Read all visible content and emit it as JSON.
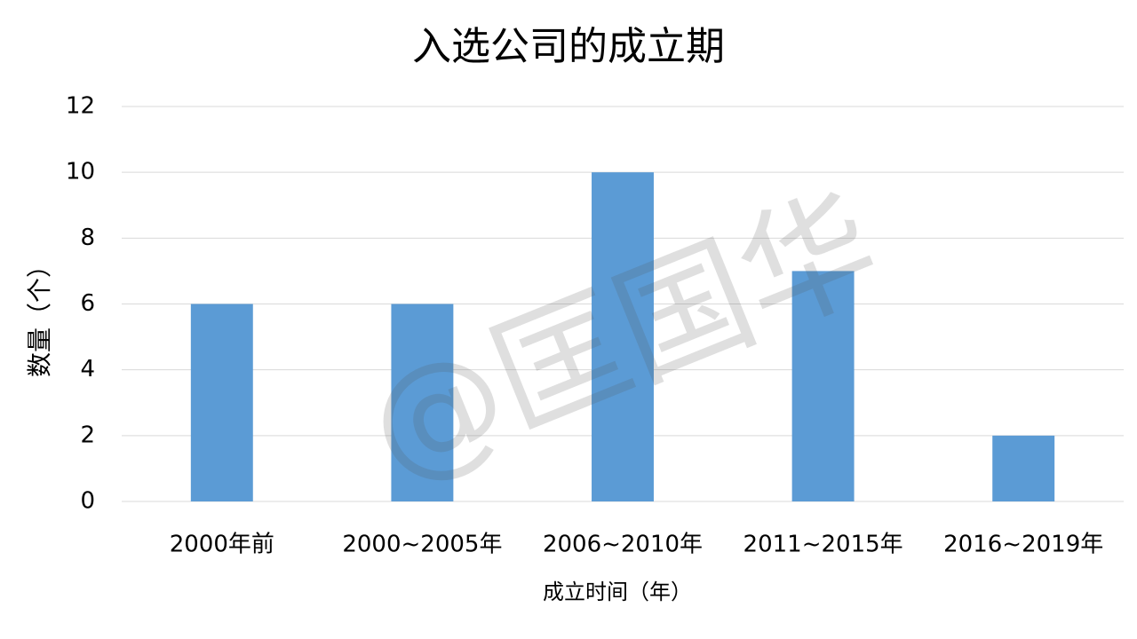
{
  "chart_data": {
    "type": "bar",
    "title": "入选公司的成立期",
    "x_label": "成立时间（年）",
    "y_label": "数量（个）",
    "categories": [
      "2000年前",
      "2000~2005年",
      "2006~2010年",
      "2011~2015年",
      "2016~2019年"
    ],
    "values": [
      6,
      6,
      10,
      7,
      2
    ],
    "color": "#5b9bd5",
    "ylim": [
      0,
      12
    ],
    "yticks": [
      0,
      2,
      4,
      6,
      8,
      10,
      12
    ],
    "grid": true,
    "watermark": "@匡国华"
  }
}
